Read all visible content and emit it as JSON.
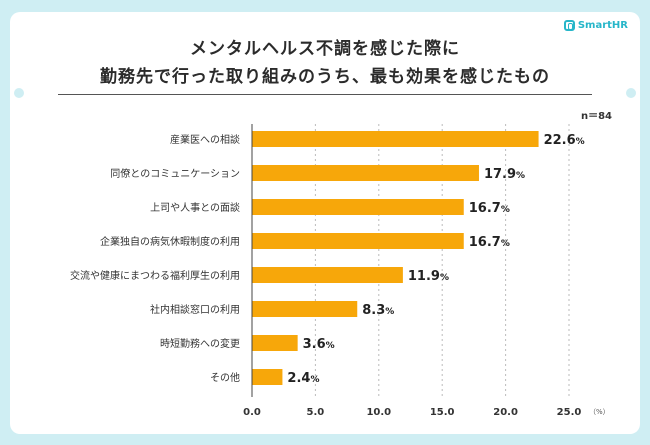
{
  "header": {
    "title_line1": "メンタルヘルス不調を感じた際に",
    "title_line2": "勤務先で行った取り組みのうち、最も効果を感じたもの",
    "brand": "SmartHR",
    "sample_size": "n＝84"
  },
  "colors": {
    "bar": "#f7a70a",
    "background": "#cfeef3",
    "brand": "#27b6c9"
  },
  "chart_data": {
    "type": "bar",
    "orientation": "horizontal",
    "categories": [
      "産業医への相談",
      "同僚とのコミュニケーション",
      "上司や人事との面談",
      "企業独自の病気休暇制度の利用",
      "交流や健康にまつわる福利厚生の利用",
      "社内相談窓口の利用",
      "時短勤務への変更",
      "その他"
    ],
    "values": [
      22.6,
      17.9,
      16.7,
      16.7,
      11.9,
      8.3,
      3.6,
      2.4
    ],
    "value_labels": [
      "22.6",
      "17.9",
      "16.7",
      "16.7",
      "11.9",
      "8.3",
      "3.6",
      "2.4"
    ],
    "value_suffix": "%",
    "xlim": [
      0,
      25
    ],
    "ticks": [
      "0.0",
      "5.0",
      "10.0",
      "15.0",
      "20.0",
      "25.0"
    ],
    "tick_values": [
      0,
      5,
      10,
      15,
      20,
      25
    ],
    "unit_label": "（%）",
    "grid": true
  }
}
